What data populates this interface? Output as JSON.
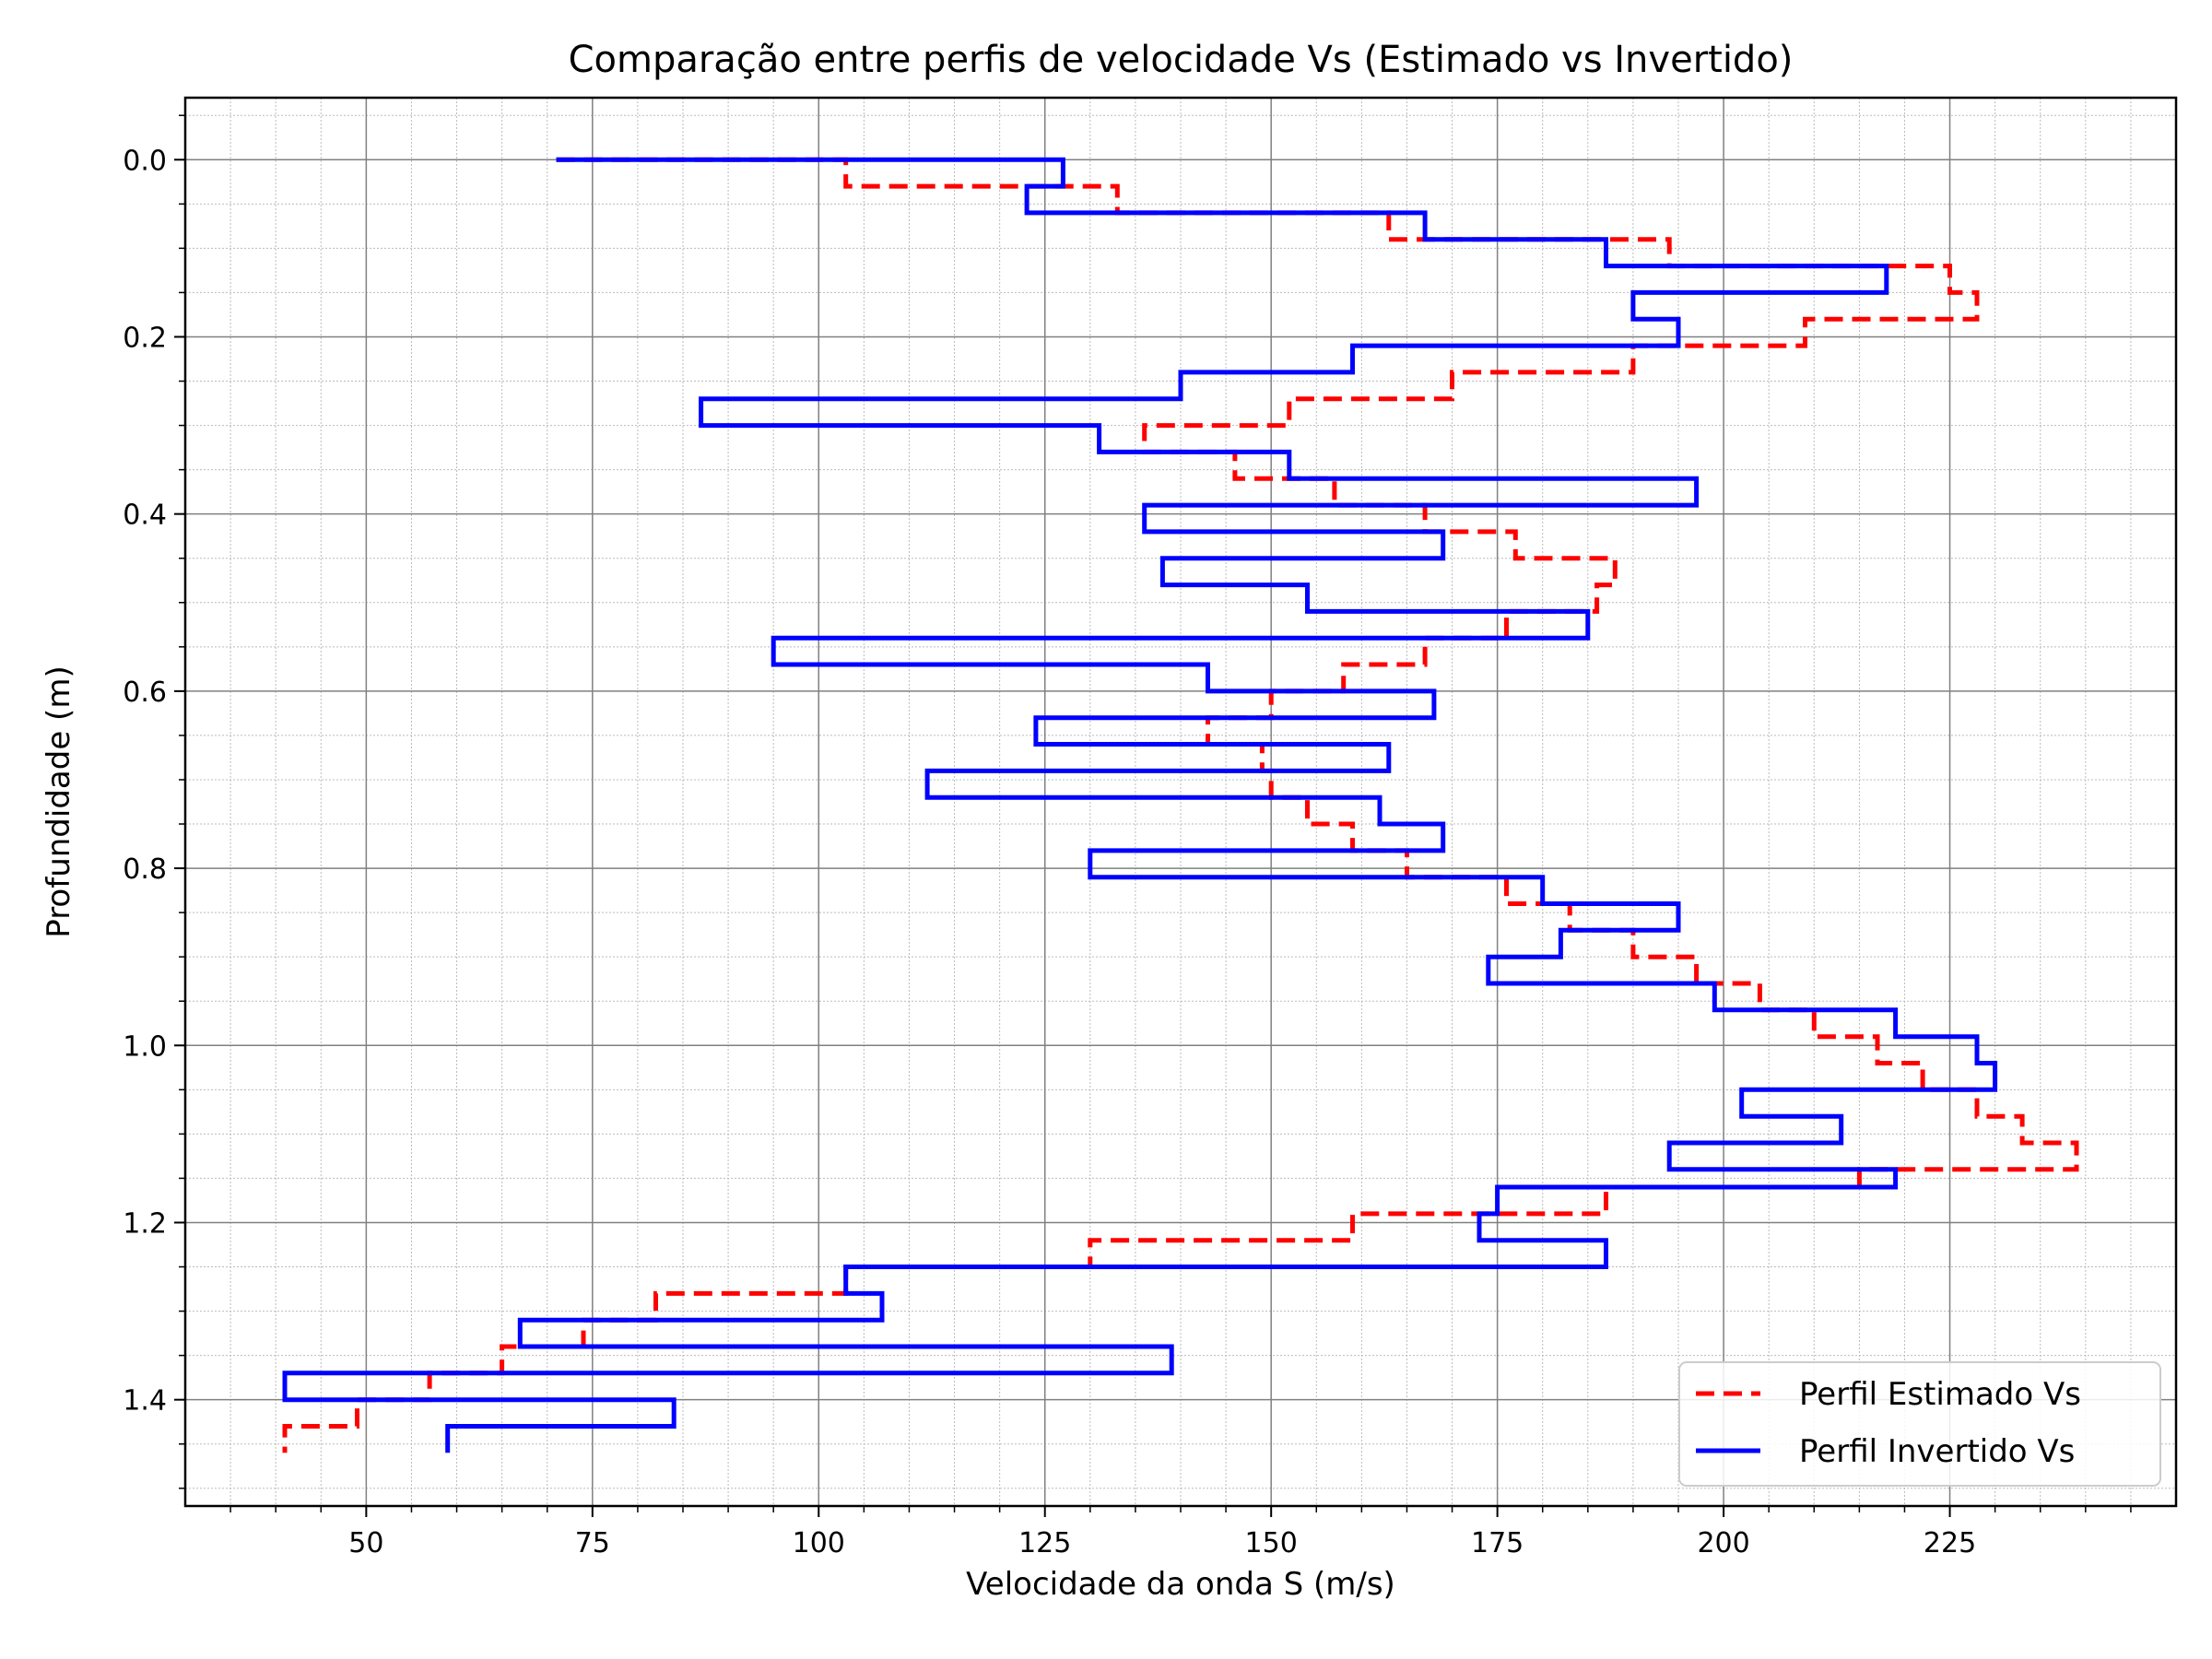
{
  "chart_data": {
    "type": "line",
    "title": "Comparação entre perfis de velocidade Vs (Estimado vs Invertido)",
    "xlabel": "Velocidade da onda S (m/s)",
    "ylabel": "Profundidade (m)",
    "xlim": [
      30,
      250
    ],
    "ylim": [
      1.52,
      -0.07
    ],
    "y_inverted": true,
    "xticks": [
      50,
      75,
      100,
      125,
      150,
      175,
      200,
      225
    ],
    "yticks": [
      0.0,
      0.2,
      0.4,
      0.6,
      0.8,
      1.0,
      1.2,
      1.4
    ],
    "xtick_labels": [
      "50",
      "75",
      "100",
      "125",
      "150",
      "175",
      "200",
      "225"
    ],
    "ytick_labels": [
      "0.0",
      "0.2",
      "0.4",
      "0.6",
      "0.8",
      "1.0",
      "1.2",
      "1.4"
    ],
    "grid": true,
    "minor_grid": true,
    "legend_position": "bottom-right",
    "colors": {
      "estimated": "#ff0000",
      "inverted": "#0000ff"
    },
    "series": [
      {
        "name": "Perfil Estimado Vs",
        "style": "dashed",
        "points": [
          [
            71,
            0
          ],
          [
            103,
            0
          ],
          [
            103,
            0.03
          ],
          [
            133,
            0.03
          ],
          [
            133,
            0.06
          ],
          [
            163,
            0.06
          ],
          [
            163,
            0.09
          ],
          [
            194,
            0.09
          ],
          [
            194,
            0.12
          ],
          [
            225,
            0.12
          ],
          [
            225,
            0.15
          ],
          [
            228,
            0.15
          ],
          [
            228,
            0.18
          ],
          [
            209,
            0.18
          ],
          [
            209,
            0.21
          ],
          [
            190,
            0.21
          ],
          [
            190,
            0.24
          ],
          [
            170,
            0.24
          ],
          [
            170,
            0.27
          ],
          [
            152,
            0.27
          ],
          [
            152,
            0.3
          ],
          [
            136,
            0.3
          ],
          [
            136,
            0.33
          ],
          [
            146,
            0.33
          ],
          [
            146,
            0.36
          ],
          [
            157,
            0.36
          ],
          [
            157,
            0.39
          ],
          [
            167,
            0.39
          ],
          [
            167,
            0.42
          ],
          [
            177,
            0.42
          ],
          [
            177,
            0.45
          ],
          [
            188,
            0.45
          ],
          [
            188,
            0.48
          ],
          [
            186,
            0.48
          ],
          [
            186,
            0.51
          ],
          [
            176,
            0.51
          ],
          [
            176,
            0.54
          ],
          [
            167,
            0.54
          ],
          [
            167,
            0.57
          ],
          [
            158,
            0.57
          ],
          [
            158,
            0.6
          ],
          [
            150,
            0.6
          ],
          [
            150,
            0.63
          ],
          [
            143,
            0.63
          ],
          [
            143,
            0.66
          ],
          [
            149,
            0.66
          ],
          [
            149,
            0.69
          ],
          [
            150,
            0.69
          ],
          [
            150,
            0.72
          ],
          [
            154,
            0.72
          ],
          [
            154,
            0.75
          ],
          [
            159,
            0.75
          ],
          [
            159,
            0.78
          ],
          [
            165,
            0.78
          ],
          [
            165,
            0.81
          ],
          [
            176,
            0.81
          ],
          [
            176,
            0.84
          ],
          [
            183,
            0.84
          ],
          [
            183,
            0.87
          ],
          [
            190,
            0.87
          ],
          [
            190,
            0.9
          ],
          [
            197,
            0.9
          ],
          [
            197,
            0.93
          ],
          [
            204,
            0.93
          ],
          [
            204,
            0.96
          ],
          [
            210,
            0.96
          ],
          [
            210,
            0.99
          ],
          [
            217,
            0.99
          ],
          [
            217,
            1.02
          ],
          [
            222,
            1.02
          ],
          [
            222,
            1.05
          ],
          [
            228,
            1.05
          ],
          [
            228,
            1.08
          ],
          [
            233,
            1.08
          ],
          [
            233,
            1.11
          ],
          [
            239,
            1.11
          ],
          [
            239,
            1.14
          ],
          [
            215,
            1.14
          ],
          [
            215,
            1.16
          ],
          [
            187,
            1.16
          ],
          [
            187,
            1.19
          ],
          [
            159,
            1.19
          ],
          [
            159,
            1.22
          ],
          [
            130,
            1.22
          ],
          [
            130,
            1.25
          ],
          [
            103,
            1.25
          ],
          [
            103,
            1.28
          ],
          [
            82,
            1.28
          ],
          [
            82,
            1.31
          ],
          [
            74,
            1.31
          ],
          [
            74,
            1.34
          ],
          [
            65,
            1.34
          ],
          [
            65,
            1.37
          ],
          [
            57,
            1.37
          ],
          [
            57,
            1.4
          ],
          [
            49,
            1.4
          ],
          [
            49,
            1.43
          ],
          [
            41,
            1.43
          ],
          [
            41,
            1.46
          ]
        ]
      },
      {
        "name": "Perfil Invertido Vs",
        "style": "solid",
        "points": [
          [
            71,
            0
          ],
          [
            127,
            0
          ],
          [
            127,
            0.03
          ],
          [
            123,
            0.03
          ],
          [
            123,
            0.06
          ],
          [
            167,
            0.06
          ],
          [
            167,
            0.09
          ],
          [
            187,
            0.09
          ],
          [
            187,
            0.12
          ],
          [
            218,
            0.12
          ],
          [
            218,
            0.15
          ],
          [
            190,
            0.15
          ],
          [
            190,
            0.18
          ],
          [
            195,
            0.18
          ],
          [
            195,
            0.21
          ],
          [
            159,
            0.21
          ],
          [
            159,
            0.24
          ],
          [
            140,
            0.24
          ],
          [
            140,
            0.27
          ],
          [
            87,
            0.27
          ],
          [
            87,
            0.3
          ],
          [
            131,
            0.3
          ],
          [
            131,
            0.33
          ],
          [
            152,
            0.33
          ],
          [
            152,
            0.36
          ],
          [
            197,
            0.36
          ],
          [
            197,
            0.39
          ],
          [
            136,
            0.39
          ],
          [
            136,
            0.42
          ],
          [
            169,
            0.42
          ],
          [
            169,
            0.45
          ],
          [
            138,
            0.45
          ],
          [
            138,
            0.48
          ],
          [
            154,
            0.48
          ],
          [
            154,
            0.51
          ],
          [
            185,
            0.51
          ],
          [
            185,
            0.54
          ],
          [
            95,
            0.54
          ],
          [
            95,
            0.57
          ],
          [
            143,
            0.57
          ],
          [
            143,
            0.6
          ],
          [
            168,
            0.6
          ],
          [
            168,
            0.63
          ],
          [
            124,
            0.63
          ],
          [
            124,
            0.66
          ],
          [
            163,
            0.66
          ],
          [
            163,
            0.69
          ],
          [
            112,
            0.69
          ],
          [
            112,
            0.72
          ],
          [
            162,
            0.72
          ],
          [
            162,
            0.75
          ],
          [
            169,
            0.75
          ],
          [
            169,
            0.78
          ],
          [
            130,
            0.78
          ],
          [
            130,
            0.81
          ],
          [
            180,
            0.81
          ],
          [
            180,
            0.84
          ],
          [
            195,
            0.84
          ],
          [
            195,
            0.87
          ],
          [
            182,
            0.87
          ],
          [
            182,
            0.9
          ],
          [
            174,
            0.9
          ],
          [
            174,
            0.93
          ],
          [
            199,
            0.93
          ],
          [
            199,
            0.96
          ],
          [
            219,
            0.96
          ],
          [
            219,
            0.99
          ],
          [
            228,
            0.99
          ],
          [
            228,
            1.02
          ],
          [
            230,
            1.02
          ],
          [
            230,
            1.05
          ],
          [
            202,
            1.05
          ],
          [
            202,
            1.08
          ],
          [
            213,
            1.08
          ],
          [
            213,
            1.11
          ],
          [
            194,
            1.11
          ],
          [
            194,
            1.14
          ],
          [
            219,
            1.14
          ],
          [
            219,
            1.16
          ],
          [
            175,
            1.16
          ],
          [
            175,
            1.19
          ],
          [
            173,
            1.19
          ],
          [
            173,
            1.22
          ],
          [
            187,
            1.22
          ],
          [
            187,
            1.25
          ],
          [
            103,
            1.25
          ],
          [
            103,
            1.28
          ],
          [
            107,
            1.28
          ],
          [
            107,
            1.31
          ],
          [
            67,
            1.31
          ],
          [
            67,
            1.34
          ],
          [
            139,
            1.34
          ],
          [
            139,
            1.37
          ],
          [
            41,
            1.37
          ],
          [
            41,
            1.4
          ],
          [
            84,
            1.4
          ],
          [
            84,
            1.43
          ],
          [
            59,
            1.43
          ],
          [
            59,
            1.46
          ]
        ]
      }
    ]
  }
}
